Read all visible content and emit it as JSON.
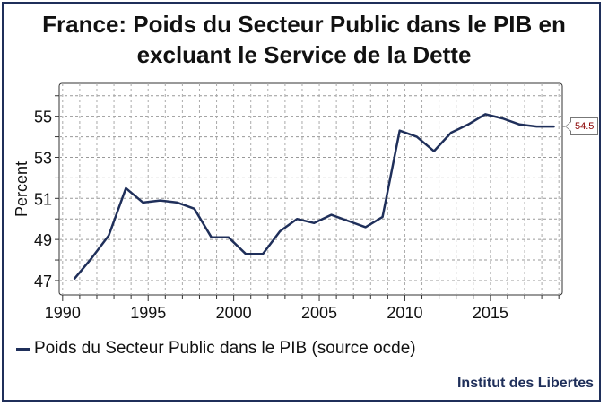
{
  "chart_data": {
    "type": "line",
    "title": "France: Poids du Secteur Public dans le PIB en\nexcluant le Service de la Dette",
    "xlabel": "",
    "ylabel": "Percent",
    "x_ticks": [
      1990,
      1995,
      2000,
      2005,
      2010,
      2015
    ],
    "y_ticks": [
      47,
      49,
      51,
      53,
      55
    ],
    "xlim": [
      1989.8,
      2019.2
    ],
    "ylim": [
      46.3,
      56.6
    ],
    "grid": true,
    "legend_position": "bottom-left",
    "end_label": "54.5",
    "x": [
      1990.7,
      1991.7,
      1992.7,
      1993.7,
      1994.7,
      1995.7,
      1996.7,
      1997.7,
      1998.7,
      1999.7,
      2000.7,
      2001.7,
      2002.7,
      2003.7,
      2004.7,
      2005.7,
      2006.7,
      2007.7,
      2008.7,
      2009.7,
      2010.7,
      2011.7,
      2012.7,
      2013.7,
      2014.7,
      2015.7,
      2016.7,
      2017.7,
      2018.7
    ],
    "series": [
      {
        "name": "Poids du Secteur Public dans le PIB (source ocde)",
        "color": "#1f2f5a",
        "values": [
          47.1,
          48.1,
          49.2,
          51.5,
          50.8,
          50.9,
          50.8,
          50.5,
          49.1,
          49.1,
          48.3,
          48.3,
          49.4,
          50.0,
          49.8,
          50.2,
          49.9,
          49.6,
          50.1,
          54.3,
          54.0,
          53.3,
          54.2,
          54.6,
          55.1,
          54.9,
          54.6,
          54.5,
          54.5
        ]
      }
    ]
  },
  "credit": "Institut des Libertes"
}
